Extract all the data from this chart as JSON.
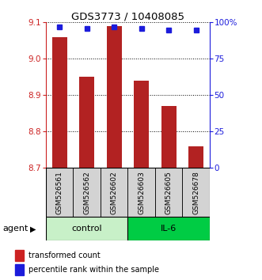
{
  "title": "GDS3773 / 10408085",
  "samples": [
    "GSM526561",
    "GSM526562",
    "GSM526602",
    "GSM526603",
    "GSM526605",
    "GSM526678"
  ],
  "bar_values": [
    9.06,
    8.95,
    9.09,
    8.94,
    8.87,
    8.76
  ],
  "percentile_values": [
    97,
    96,
    97,
    96,
    95,
    95
  ],
  "ylim_left": [
    8.7,
    9.1
  ],
  "yticks_left": [
    8.7,
    8.8,
    8.9,
    9.0,
    9.1
  ],
  "yticks_right": [
    0,
    25,
    50,
    75,
    100
  ],
  "ytick_right_labels": [
    "0",
    "25",
    "50",
    "75",
    "100%"
  ],
  "bar_color": "#b22222",
  "dot_color": "#1c1cdb",
  "bar_bottom": 8.7,
  "groups": [
    {
      "label": "control",
      "indices": [
        0,
        1,
        2
      ],
      "color": "#c8f0c8"
    },
    {
      "label": "IL-6",
      "indices": [
        3,
        4,
        5
      ],
      "color": "#00cc44"
    }
  ],
  "agent_label": "agent",
  "legend_bar_label": "transformed count",
  "legend_dot_label": "percentile rank within the sample",
  "bar_color_legend": "#cc2222",
  "dot_color_legend": "#1c1cdb",
  "left_tick_color": "#cc2222",
  "right_tick_color": "#1c1cdb",
  "grid_linestyle": ":",
  "grid_color": "black",
  "grid_linewidth": 0.7
}
